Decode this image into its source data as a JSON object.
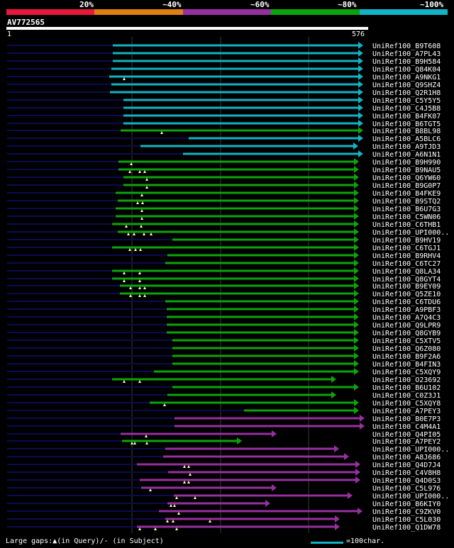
{
  "legend": {
    "colors": [
      "#e8193c",
      "#e07f10",
      "#9630a0",
      "#0ca40c",
      "#10b4c4"
    ],
    "labels": [
      "20%",
      "~40%",
      "~60%",
      "~80%",
      "~100%"
    ]
  },
  "query": {
    "id": "AV772565",
    "start": "1",
    "end": "576",
    "length": 576
  },
  "hits": [
    {
      "name": "UniRef100_B9T608",
      "c": 4,
      "s": 159,
      "e": 512,
      "t": []
    },
    {
      "name": "UniRef100_A7PL43",
      "c": 4,
      "s": 159,
      "e": 512,
      "t": []
    },
    {
      "name": "UniRef100_B9H584",
      "c": 4,
      "s": 159,
      "e": 512,
      "t": []
    },
    {
      "name": "UniRef100_Q84K04",
      "c": 4,
      "s": 157,
      "e": 512,
      "t": []
    },
    {
      "name": "UniRef100_A9NKG1",
      "c": 4,
      "s": 154,
      "e": 512,
      "t": [
        175
      ]
    },
    {
      "name": "UniRef100_Q9SHZ4",
      "c": 4,
      "s": 157,
      "e": 512,
      "t": []
    },
    {
      "name": "UniRef100_Q2R1H8",
      "c": 4,
      "s": 155,
      "e": 512,
      "t": []
    },
    {
      "name": "UniRef100_C5Y5Y5",
      "c": 4,
      "s": 174,
      "e": 512,
      "t": []
    },
    {
      "name": "UniRef100_C4J5B8",
      "c": 4,
      "s": 174,
      "e": 512,
      "t": []
    },
    {
      "name": "UniRef100_B4FK07",
      "c": 4,
      "s": 174,
      "e": 512,
      "t": []
    },
    {
      "name": "UniRef100_B6TGT5",
      "c": 4,
      "s": 174,
      "e": 512,
      "t": []
    },
    {
      "name": "UniRef100_B8BL98",
      "c": 3,
      "s": 170,
      "e": 512,
      "t": [
        228
      ]
    },
    {
      "name": "UniRef100_A5BLC6",
      "c": 4,
      "s": 266,
      "e": 512,
      "t": []
    },
    {
      "name": "UniRef100_A9TJD3",
      "c": 4,
      "s": 198,
      "e": 505,
      "t": []
    },
    {
      "name": "UniRef100_A6N1N1",
      "c": 4,
      "s": 258,
      "e": 512,
      "t": []
    },
    {
      "name": "UniRef100_B9H990",
      "c": 3,
      "s": 167,
      "e": 506,
      "t": [
        185
      ]
    },
    {
      "name": "UniRef100_B9NAU5",
      "c": 3,
      "s": 167,
      "e": 506,
      "t": [
        183,
        197,
        204
      ]
    },
    {
      "name": "UniRef100_Q6YW60",
      "c": 3,
      "s": 174,
      "e": 506,
      "t": [
        207
      ]
    },
    {
      "name": "UniRef100_B9G0P7",
      "c": 3,
      "s": 174,
      "e": 506,
      "t": [
        207
      ]
    },
    {
      "name": "UniRef100_B4FKE9",
      "c": 3,
      "s": 163,
      "e": 506,
      "t": [
        200
      ]
    },
    {
      "name": "UniRef100_B9STQ2",
      "c": 3,
      "s": 166,
      "e": 506,
      "t": [
        194,
        201
      ]
    },
    {
      "name": "UniRef100_B6U7G3",
      "c": 3,
      "s": 163,
      "e": 506,
      "t": [
        200
      ]
    },
    {
      "name": "UniRef100_C5WN06",
      "c": 3,
      "s": 163,
      "e": 506,
      "t": [
        200
      ]
    },
    {
      "name": "UniRef100_C6THB1",
      "c": 3,
      "s": 158,
      "e": 506,
      "t": [
        178,
        199
      ]
    },
    {
      "name": "UniRef100_UPI000..",
      "c": 3,
      "s": 166,
      "e": 506,
      "t": [
        181,
        189,
        203,
        213
      ]
    },
    {
      "name": "UniRef100_B9HV19",
      "c": 3,
      "s": 243,
      "e": 506,
      "t": []
    },
    {
      "name": "UniRef100_C6TGJ1",
      "c": 3,
      "s": 158,
      "e": 506,
      "t": [
        183,
        191,
        198
      ]
    },
    {
      "name": "UniRef100_B9RHV4",
      "c": 3,
      "s": 236,
      "e": 506,
      "t": []
    },
    {
      "name": "UniRef100_C6TC27",
      "c": 3,
      "s": 233,
      "e": 506,
      "t": []
    },
    {
      "name": "UniRef100_Q8LA34",
      "c": 3,
      "s": 158,
      "e": 506,
      "t": [
        175,
        197
      ]
    },
    {
      "name": "UniRef100_Q8GYT4",
      "c": 3,
      "s": 158,
      "e": 506,
      "t": [
        175,
        197
      ]
    },
    {
      "name": "UniRef100_B9EY09",
      "c": 3,
      "s": 169,
      "e": 506,
      "t": [
        184,
        197,
        204
      ]
    },
    {
      "name": "UniRef100_Q5ZE10",
      "c": 3,
      "s": 169,
      "e": 506,
      "t": [
        184,
        197,
        204
      ]
    },
    {
      "name": "UniRef100_C6TDU6",
      "c": 3,
      "s": 233,
      "e": 506,
      "t": []
    },
    {
      "name": "UniRef100_A9PBF3",
      "c": 3,
      "s": 235,
      "e": 506,
      "t": []
    },
    {
      "name": "UniRef100_A7Q4C3",
      "c": 3,
      "s": 235,
      "e": 506,
      "t": []
    },
    {
      "name": "UniRef100_Q9LPR9",
      "c": 3,
      "s": 235,
      "e": 506,
      "t": []
    },
    {
      "name": "UniRef100_Q8GYB9",
      "c": 3,
      "s": 235,
      "e": 506,
      "t": []
    },
    {
      "name": "UniRef100_C5XTV5",
      "c": 3,
      "s": 243,
      "e": 506,
      "t": []
    },
    {
      "name": "UniRef100_Q6Z080",
      "c": 3,
      "s": 243,
      "e": 506,
      "t": []
    },
    {
      "name": "UniRef100_B9F2A6",
      "c": 3,
      "s": 243,
      "e": 506,
      "t": []
    },
    {
      "name": "UniRef100_B4FIN3",
      "c": 3,
      "s": 243,
      "e": 506,
      "t": []
    },
    {
      "name": "UniRef100_C5XQY9",
      "c": 3,
      "s": 217,
      "e": 506,
      "t": []
    },
    {
      "name": "UniRef100_O23692",
      "c": 3,
      "s": 158,
      "e": 474,
      "t": [
        175,
        197
      ]
    },
    {
      "name": "UniRef100_B6U102",
      "c": 3,
      "s": 243,
      "e": 506,
      "t": []
    },
    {
      "name": "UniRef100_C0Z3J1",
      "c": 3,
      "s": 236,
      "e": 474,
      "t": []
    },
    {
      "name": "UniRef100_C5XQY8",
      "c": 3,
      "s": 211,
      "e": 506,
      "t": [
        232
      ]
    },
    {
      "name": "UniRef100_A7PEY3",
      "c": 3,
      "s": 344,
      "e": 506,
      "t": []
    },
    {
      "name": "UniRef100_B0E7P3",
      "c": 2,
      "s": 246,
      "e": 514,
      "t": []
    },
    {
      "name": "UniRef100_C4M4A1",
      "c": 2,
      "s": 246,
      "e": 514,
      "t": []
    },
    {
      "name": "UniRef100_Q4PI05",
      "c": 2,
      "s": 170,
      "e": 390,
      "t": [
        206
      ]
    },
    {
      "name": "UniRef100_A7PEY2",
      "c": 3,
      "s": 172,
      "e": 341,
      "t": [
        186,
        190,
        207
      ]
    },
    {
      "name": "UniRef100_UPI000..",
      "c": 2,
      "s": 233,
      "e": 478,
      "t": []
    },
    {
      "name": "UniRef100_A8J686",
      "c": 2,
      "s": 230,
      "e": 492,
      "t": []
    },
    {
      "name": "UniRef100_Q4D7J4",
      "c": 2,
      "s": 193,
      "e": 508,
      "t": [
        260,
        266
      ]
    },
    {
      "name": "UniRef100_C4V8H8",
      "c": 2,
      "s": 237,
      "e": 508,
      "t": [
        268
      ]
    },
    {
      "name": "UniRef100_Q4D0S3",
      "c": 2,
      "s": 197,
      "e": 508,
      "t": [
        260,
        266
      ]
    },
    {
      "name": "UniRef100_C5L976",
      "c": 2,
      "s": 199,
      "e": 390,
      "t": [
        212
      ]
    },
    {
      "name": "UniRef100_UPI000..",
      "c": 2,
      "s": 245,
      "e": 497,
      "t": [
        249,
        275
      ]
    },
    {
      "name": "UniRef100_B6KIY0",
      "c": 2,
      "s": 236,
      "e": 381,
      "t": [
        241,
        246
      ]
    },
    {
      "name": "UniRef100_C9ZKV0",
      "c": 2,
      "s": 224,
      "e": 511,
      "t": [
        252
      ]
    },
    {
      "name": "UniRef100_C5L030",
      "c": 2,
      "s": 233,
      "e": 479,
      "t": [
        236,
        244,
        296
      ]
    },
    {
      "name": "UniRef100_Q1DW78",
      "c": 2,
      "s": 193,
      "e": 479,
      "t": [
        197,
        219,
        249
      ]
    }
  ],
  "footer": {
    "gaps_text": "Large gaps:▲(in Query)/- (in Subject)",
    "scale_label": "=100char.",
    "scale_color": "#10b4c4"
  }
}
